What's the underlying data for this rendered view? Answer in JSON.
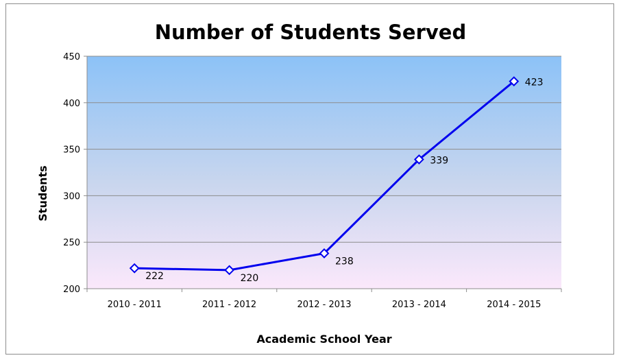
{
  "chart_data": {
    "type": "line",
    "title": "Number of Students Served",
    "xlabel": "Academic School Year",
    "ylabel": "Students",
    "categories": [
      "2010 - 2011",
      "2011 - 2012",
      "2012 - 2013",
      "2013 - 2014",
      "2014 - 2015"
    ],
    "series": [
      {
        "values": [
          222,
          220,
          238,
          339,
          423
        ],
        "color": "#0000ee"
      }
    ],
    "ylim": [
      200,
      450
    ],
    "yticks": [
      200,
      250,
      300,
      350,
      400,
      450
    ],
    "grid": true,
    "legend": "none",
    "data_labels": [
      "222",
      "220",
      "238",
      "339",
      "423"
    ],
    "colors": {
      "plot_top": "#8cc2f7",
      "plot_middle": "#c9d6ee",
      "plot_bottom": "#fbe8fb",
      "gridline": "#8c8c8c",
      "marker_fill": "#ffffff"
    }
  }
}
